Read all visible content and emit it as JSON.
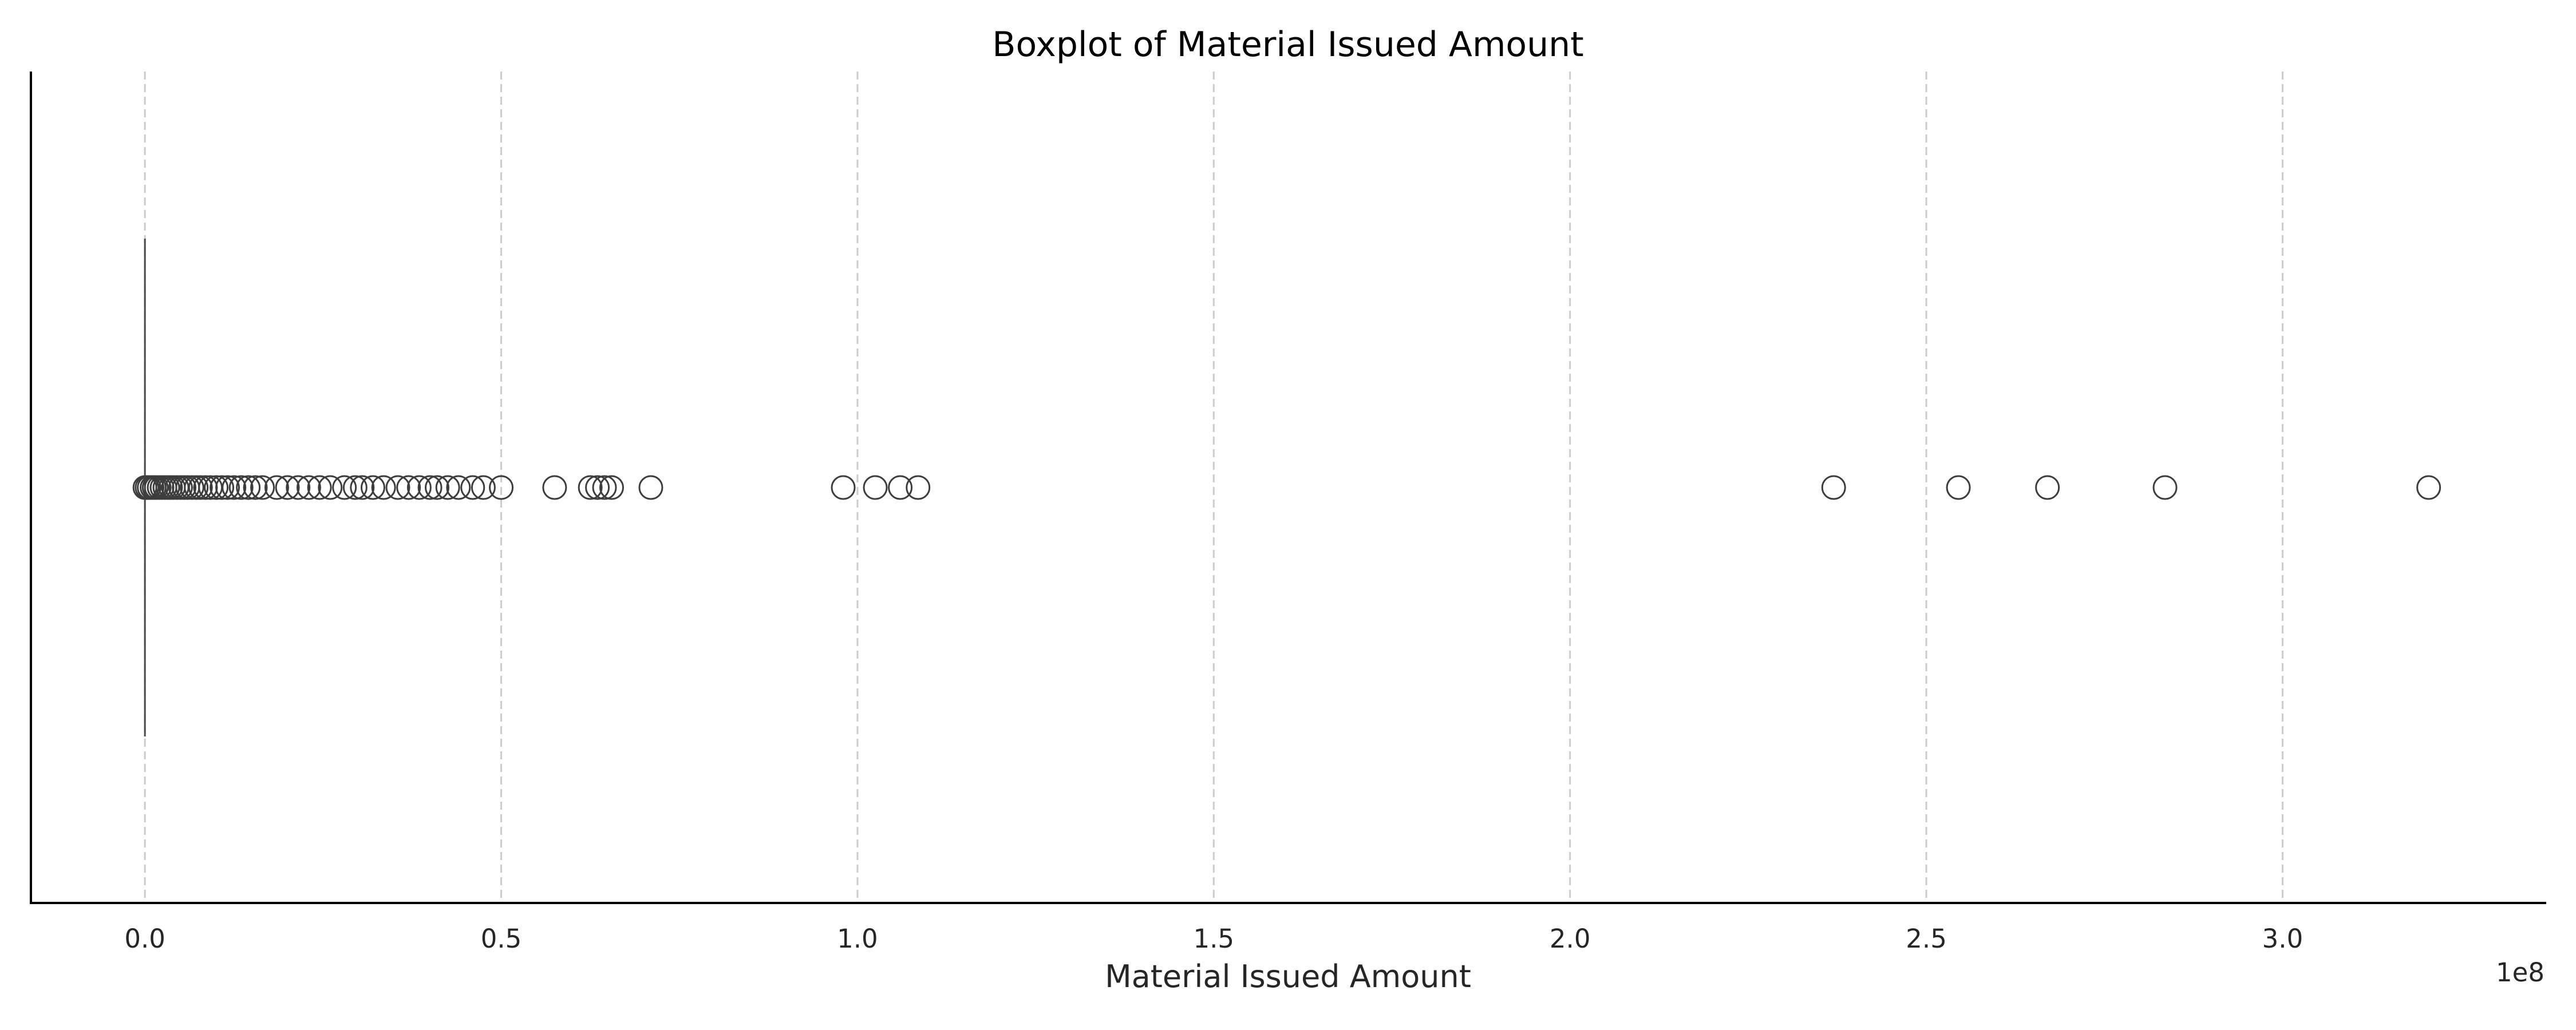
{
  "chart_data": {
    "type": "boxplot",
    "orientation": "horizontal",
    "title": "Boxplot of Material Issued Amount",
    "xlabel": "Material Issued Amount",
    "ylabel": "",
    "x_offset_label": "1e8",
    "xlim": [
      -0.16,
      3.37
    ],
    "x_scale_factor": 100000000,
    "x_ticks": [
      0.0,
      0.5,
      1.0,
      1.5,
      2.0,
      2.5,
      3.0
    ],
    "x_tick_labels": [
      "0.0",
      "0.5",
      "1.0",
      "1.5",
      "2.0",
      "2.5",
      "3.0"
    ],
    "grid": {
      "x": true,
      "y": false,
      "style": "dashed"
    },
    "box": {
      "min": 0.0,
      "q1": 0.0,
      "median": 0.0,
      "q3": 0.0,
      "max": 0.0
    },
    "outliers": [
      0.0,
      0.003,
      0.006,
      0.01,
      0.013,
      0.016,
      0.02,
      0.024,
      0.028,
      0.032,
      0.036,
      0.04,
      0.045,
      0.05,
      0.055,
      0.06,
      0.066,
      0.072,
      0.078,
      0.085,
      0.092,
      0.1,
      0.108,
      0.116,
      0.125,
      0.135,
      0.145,
      0.155,
      0.165,
      0.185,
      0.2,
      0.215,
      0.23,
      0.245,
      0.26,
      0.28,
      0.295,
      0.305,
      0.32,
      0.335,
      0.355,
      0.37,
      0.385,
      0.4,
      0.41,
      0.425,
      0.44,
      0.46,
      0.475,
      0.5,
      0.575,
      0.625,
      0.635,
      0.645,
      0.655,
      0.71,
      0.98,
      1.025,
      1.06,
      1.085,
      2.37,
      2.545,
      2.67,
      2.835,
      3.205
    ]
  }
}
